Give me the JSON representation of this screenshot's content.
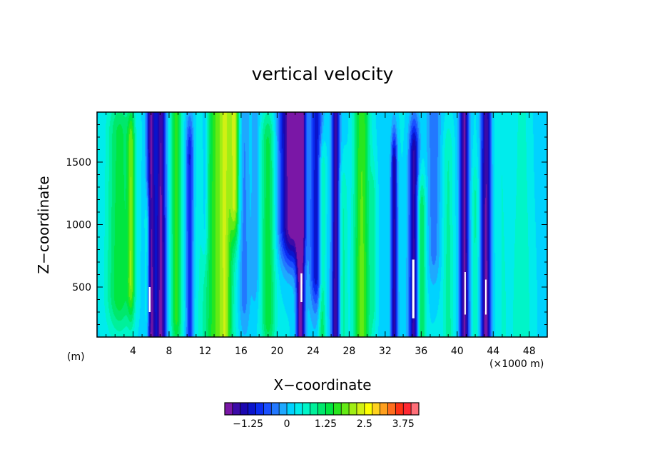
{
  "chart_data": {
    "type": "heatmap",
    "title": "vertical velocity",
    "xlabel": "X−coordinate",
    "ylabel": "Z−coordinate",
    "x_unit": "(×1000 m)",
    "y_unit": "(m)",
    "xlim": [
      0,
      50
    ],
    "ylim": [
      100,
      1900
    ],
    "x_ticks": [
      4,
      8,
      12,
      16,
      20,
      24,
      28,
      32,
      36,
      40,
      44,
      48
    ],
    "x_tick_labels": [
      "4",
      "8",
      "12",
      "16",
      "20",
      "24",
      "28",
      "32",
      "36",
      "40",
      "44",
      "48"
    ],
    "y_ticks": [
      500,
      1000,
      1500
    ],
    "y_tick_labels": [
      "500",
      "1000",
      "1500"
    ],
    "colorbar": {
      "min": -2.0,
      "max": 4.25,
      "step": 0.25,
      "tick_values": [
        -1.25,
        0,
        1.25,
        2.5,
        3.75
      ],
      "tick_labels": [
        "−1.25",
        "0",
        "1.25",
        "2.5",
        "3.75"
      ],
      "colors": [
        "#7a17a6",
        "#3b0aa8",
        "#1a06b0",
        "#0a14cc",
        "#0a2cf0",
        "#1a50ff",
        "#2278ff",
        "#1ea8ff",
        "#00d2ff",
        "#00ecec",
        "#00f5c8",
        "#00f09a",
        "#00e86c",
        "#00e640",
        "#28e61e",
        "#64ea14",
        "#a0ee14",
        "#d2f014",
        "#ffff00",
        "#ffd21e",
        "#ffa01e",
        "#ff6e1e",
        "#ff3214",
        "#ff2832",
        "#ff6e78"
      ]
    },
    "features": [
      {
        "x": 2.5,
        "w": 1.4,
        "v": 1.2,
        "z0": 0.2,
        "z1": 0.9
      },
      {
        "x": 3.8,
        "w": 0.4,
        "v": 1.3,
        "z0": 0.25,
        "z1": 0.85
      },
      {
        "x": 6.0,
        "w": 0.5,
        "v": -2.0,
        "z0": -0.4,
        "z1": 1.05
      },
      {
        "x": 7.1,
        "w": 0.55,
        "v": -2.0,
        "z0": -0.5,
        "z1": 1.15
      },
      {
        "x": 5.6,
        "w": 0.3,
        "v": 0.9,
        "z0": 0.1,
        "z1": 0.5
      },
      {
        "x": 8.8,
        "w": 0.6,
        "v": 1.4,
        "z0": 0.1,
        "z1": 1.1
      },
      {
        "x": 10.3,
        "w": 0.4,
        "v": -1.2,
        "z0": 0.0,
        "z1": 0.8
      },
      {
        "x": 12.0,
        "w": 0.35,
        "v": -0.6,
        "z0": 0.5,
        "z1": 1.2
      },
      {
        "x": 13.5,
        "w": 1.6,
        "v": 1.6,
        "z0": -0.2,
        "z1": 1.1
      },
      {
        "x": 15.3,
        "w": 0.5,
        "v": 1.6,
        "z0": 0.6,
        "z1": 1.2
      },
      {
        "x": 14.3,
        "w": 0.6,
        "v": 0.8,
        "z0": -0.1,
        "z1": 1.0
      },
      {
        "x": 16.3,
        "w": 0.6,
        "v": -0.6,
        "z0": 0.2,
        "z1": 1.1
      },
      {
        "x": 17.6,
        "w": 0.45,
        "v": -0.4,
        "z0": 0.3,
        "z1": 1.0
      },
      {
        "x": 19.0,
        "w": 0.8,
        "v": 1.2,
        "z0": 0.1,
        "z1": 0.85
      },
      {
        "x": 21.6,
        "w": 1.3,
        "v": -2.2,
        "z0": 0.5,
        "z1": 1.4
      },
      {
        "x": 22.6,
        "w": 0.45,
        "v": -2.2,
        "z0": -0.4,
        "z1": 1.0
      },
      {
        "x": 24.4,
        "w": 0.7,
        "v": -1.4,
        "z0": 0.3,
        "z1": 1.1
      },
      {
        "x": 25.0,
        "w": 0.4,
        "v": 1.1,
        "z0": -0.3,
        "z1": 0.7
      },
      {
        "x": 26.5,
        "w": 0.45,
        "v": -1.9,
        "z0": -0.4,
        "z1": 0.95
      },
      {
        "x": 27.3,
        "w": 0.5,
        "v": 0.6,
        "z0": 0.0,
        "z1": 0.6
      },
      {
        "x": 29.4,
        "w": 0.9,
        "v": 1.6,
        "z0": 0.0,
        "z1": 1.2
      },
      {
        "x": 30.7,
        "w": 0.35,
        "v": 0.5,
        "z0": 0.2,
        "z1": 0.6
      },
      {
        "x": 33.0,
        "w": 0.35,
        "v": -1.7,
        "z0": 0.0,
        "z1": 0.75
      },
      {
        "x": 35.2,
        "w": 0.55,
        "v": -1.8,
        "z0": -0.4,
        "z1": 0.8
      },
      {
        "x": 36.0,
        "w": 0.5,
        "v": 1.2,
        "z0": 0.0,
        "z1": 0.55
      },
      {
        "x": 37.4,
        "w": 0.7,
        "v": -0.6,
        "z0": 0.4,
        "z1": 1.2
      },
      {
        "x": 39.0,
        "w": 0.6,
        "v": 0.6,
        "z0": 0.0,
        "z1": 0.8
      },
      {
        "x": 40.8,
        "w": 0.5,
        "v": -2.0,
        "z0": -0.4,
        "z1": 1.05
      },
      {
        "x": 42.0,
        "w": 0.4,
        "v": 0.6,
        "z0": 0.0,
        "z1": 0.6
      },
      {
        "x": 43.2,
        "w": 0.55,
        "v": -2.0,
        "z0": -0.4,
        "z1": 1.0
      },
      {
        "x": 45.0,
        "w": 1.0,
        "v": 0.3,
        "z0": 0.0,
        "z1": 1.2
      },
      {
        "x": 47.2,
        "w": 1.0,
        "v": 0.45,
        "z0": 0.0,
        "z1": 1.1
      }
    ],
    "undefined_regions": [
      {
        "x0": 5.75,
        "x1": 5.95,
        "z0": 300,
        "z1": 500
      },
      {
        "x0": 22.6,
        "x1": 22.8,
        "z0": 380,
        "z1": 610
      },
      {
        "x0": 35.0,
        "x1": 35.25,
        "z0": 250,
        "z1": 720
      },
      {
        "x0": 40.8,
        "x1": 40.95,
        "z0": 280,
        "z1": 620
      },
      {
        "x0": 43.1,
        "x1": 43.25,
        "z0": 280,
        "z1": 560
      }
    ]
  }
}
